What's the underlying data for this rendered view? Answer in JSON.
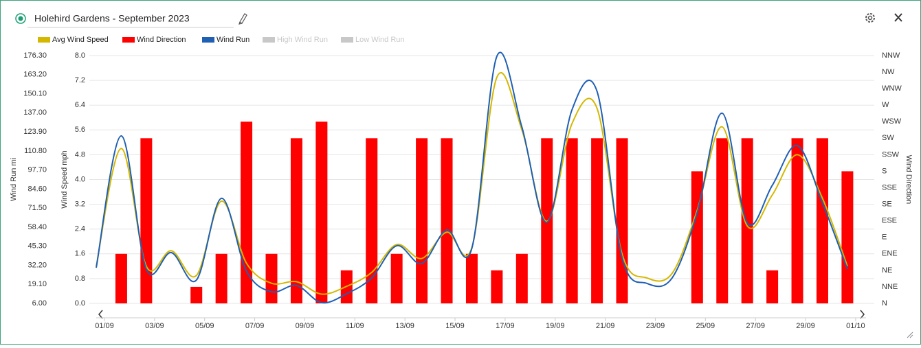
{
  "header": {
    "title": "Holehird Gardens - September 2023"
  },
  "chart_data": {
    "type": "combo",
    "categories": [
      "01/09",
      null,
      "03/09",
      null,
      "05/09",
      null,
      "07/09",
      null,
      "09/09",
      null,
      "11/09",
      null,
      "13/09",
      null,
      "15/09",
      null,
      "17/09",
      null,
      "19/09",
      null,
      "21/09",
      null,
      "23/09",
      null,
      "25/09",
      null,
      "27/09",
      null,
      "29/09",
      null,
      "01/10"
    ],
    "series": [
      {
        "name": "Avg Wind Speed",
        "color": "#d4b800",
        "kind": "line",
        "axis": "y",
        "values": [
          1.2,
          5.0,
          1.2,
          1.7,
          0.9,
          3.3,
          1.3,
          0.65,
          0.7,
          0.3,
          0.55,
          1.0,
          1.9,
          1.45,
          2.3,
          1.8,
          7.3,
          5.6,
          2.65,
          5.8,
          6.3,
          1.6,
          0.82,
          0.97,
          3.0,
          5.7,
          2.5,
          3.5,
          4.8,
          3.4,
          1.2
        ]
      },
      {
        "name": "Wind Direction",
        "color": "#ff0000",
        "kind": "bar",
        "axis": "y2",
        "values": [
          null,
          3,
          10,
          null,
          1,
          3,
          11,
          3,
          10,
          11,
          2,
          10,
          3,
          10,
          10,
          3,
          2,
          3,
          10,
          10,
          10,
          10,
          null,
          null,
          8,
          10,
          10,
          2,
          10,
          10,
          8
        ]
      },
      {
        "name": "Wind Run",
        "color": "#1f5fb4",
        "kind": "line",
        "axis": "y1",
        "values": [
          30.5,
          121.1,
          29.6,
          40.9,
          22.0,
          78.2,
          28.2,
          14.0,
          18.3,
          6.5,
          12.6,
          23.5,
          45.6,
          33.4,
          56.5,
          43.7,
          175.8,
          127.2,
          61.7,
          139.0,
          151.8,
          37.6,
          19.7,
          23.5,
          68.3,
          136.7,
          61.2,
          87.1,
          114.5,
          75.3,
          29.6
        ]
      },
      {
        "name": "High Wind Run",
        "color": "#c8c8c8",
        "visible": false
      },
      {
        "name": "Low Wind Run",
        "color": "#c8c8c8",
        "visible": false
      }
    ],
    "y1_title": "Wind Run mi",
    "y1lim": [
      6.0,
      176.3
    ],
    "y1ticks": [
      {
        "value": 6.0,
        "label": "6.00"
      },
      {
        "value": 19.1,
        "label": "19.10"
      },
      {
        "value": 32.2,
        "label": "32.20"
      },
      {
        "value": 45.3,
        "label": "45.30"
      },
      {
        "value": 58.4,
        "label": "58.40"
      },
      {
        "value": 71.5,
        "label": "71.50"
      },
      {
        "value": 84.6,
        "label": "84.60"
      },
      {
        "value": 97.7,
        "label": "97.70"
      },
      {
        "value": 110.8,
        "label": "110.80"
      },
      {
        "value": 123.9,
        "label": "123.90"
      },
      {
        "value": 137.0,
        "label": "137.00"
      },
      {
        "value": 150.1,
        "label": "150.10"
      },
      {
        "value": 163.2,
        "label": "163.20"
      },
      {
        "value": 176.3,
        "label": "176.30"
      }
    ],
    "y_title": "Wind Speed mph",
    "ylim": [
      0,
      8
    ],
    "yticks": [
      {
        "value": 0,
        "label": "0.0"
      },
      {
        "value": 0.8,
        "label": "0.8"
      },
      {
        "value": 1.6,
        "label": "1.6"
      },
      {
        "value": 2.4,
        "label": "2.4"
      },
      {
        "value": 3.2,
        "label": "3.2"
      },
      {
        "value": 4,
        "label": "4.0"
      },
      {
        "value": 4.8,
        "label": "4.8"
      },
      {
        "value": 5.6,
        "label": "5.6"
      },
      {
        "value": 6.4,
        "label": "6.4"
      },
      {
        "value": 7.2,
        "label": "7.2"
      },
      {
        "value": 8,
        "label": "8.0"
      }
    ],
    "y2_title": "Wind Direction",
    "y2lim": [
      0,
      15
    ],
    "y2ticks": [
      {
        "value": 0,
        "label": "N"
      },
      {
        "value": 1,
        "label": "NNE"
      },
      {
        "value": 2,
        "label": "NE"
      },
      {
        "value": 3,
        "label": "ENE"
      },
      {
        "value": 4,
        "label": "E"
      },
      {
        "value": 5,
        "label": "ESE"
      },
      {
        "value": 6,
        "label": "SE"
      },
      {
        "value": 7,
        "label": "SSE"
      },
      {
        "value": 8,
        "label": "S"
      },
      {
        "value": 9,
        "label": "SSW"
      },
      {
        "value": 10,
        "label": "SW"
      },
      {
        "value": 11,
        "label": "WSW"
      },
      {
        "value": 12,
        "label": "W"
      },
      {
        "value": 13,
        "label": "WNW"
      },
      {
        "value": 14,
        "label": "NW"
      },
      {
        "value": 15,
        "label": "NNW"
      }
    ],
    "grid": true
  }
}
